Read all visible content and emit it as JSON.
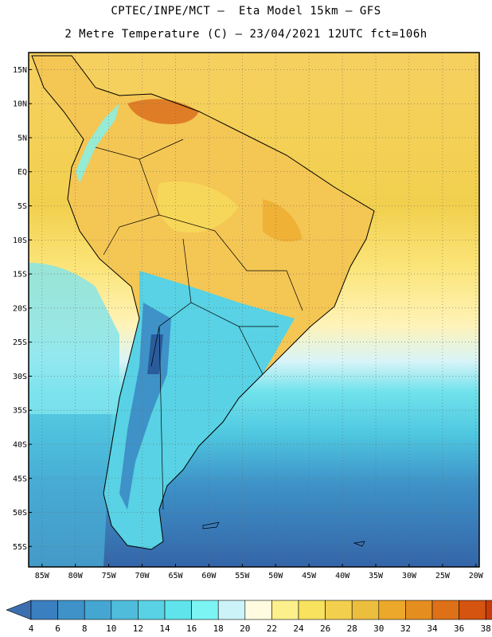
{
  "header": {
    "line1": "CPTEC/INPE/MCT –  Eta Model 15km – GFS",
    "line2": "2 Metre Temperature (C) – 23/04/2021 12UTC fct=106h"
  },
  "map": {
    "region": "South America",
    "lat_labels": [
      "15N",
      "10N",
      "5N",
      "EQ",
      "5S",
      "10S",
      "15S",
      "20S",
      "25S",
      "30S",
      "35S",
      "40S",
      "45S",
      "50S",
      "55S"
    ],
    "lon_labels": [
      "85W",
      "80W",
      "75W",
      "70W",
      "65W",
      "60W",
      "55W",
      "50W",
      "45W",
      "40W",
      "35W",
      "30W",
      "25W",
      "20W"
    ],
    "lat_values": [
      15,
      10,
      5,
      0,
      -5,
      -10,
      -15,
      -20,
      -25,
      -30,
      -35,
      -40,
      -45,
      -50,
      -55
    ],
    "lon_values": [
      -85,
      -80,
      -75,
      -70,
      -65,
      -60,
      -55,
      -50,
      -45,
      -40,
      -35,
      -30,
      -25,
      -20
    ]
  },
  "colorbar": {
    "labels": [
      "4",
      "6",
      "8",
      "10",
      "12",
      "14",
      "16",
      "18",
      "20",
      "22",
      "24",
      "26",
      "28",
      "30",
      "32",
      "34",
      "36",
      "38"
    ],
    "colors": [
      "#3c6fb0",
      "#3a7fbf",
      "#3e92c8",
      "#45a6d2",
      "#4fbcdc",
      "#58d2e4",
      "#5fe4ec",
      "#7df4f4",
      "#ccf3f8",
      "#fffbe0",
      "#fcf08c",
      "#f8e25e",
      "#f2d04e",
      "#ecbe3e",
      "#eca82a",
      "#e58e20",
      "#de7018",
      "#d45410",
      "#c63c0a",
      "#b02e08"
    ]
  }
}
